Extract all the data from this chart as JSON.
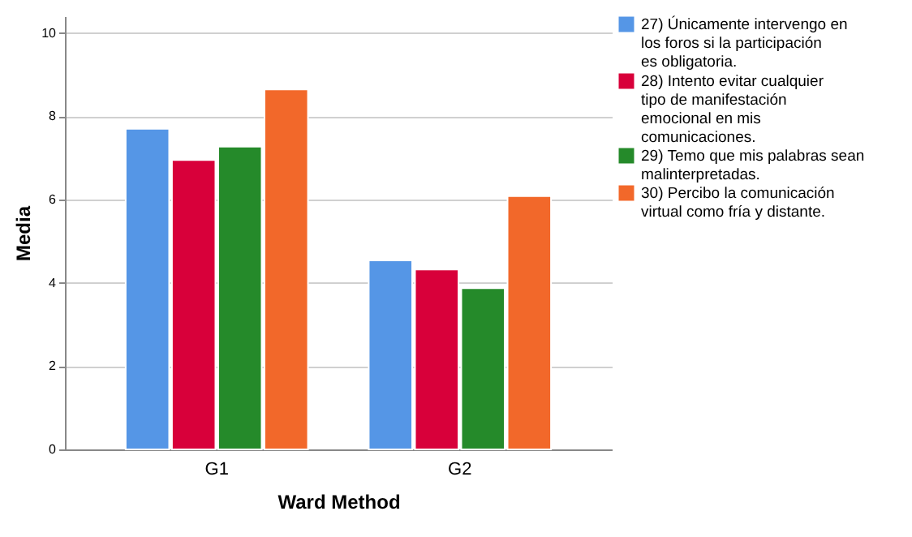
{
  "chart_data": {
    "type": "bar",
    "xlabel": "Ward Method",
    "ylabel": "Media",
    "categories": [
      "G1",
      "G2"
    ],
    "series": [
      {
        "name": "27) Únicamente intervengo en los foros si la participación es obligatoria.",
        "color": "#5596e6",
        "values": [
          7.7,
          4.54
        ]
      },
      {
        "name": "28) Intento evitar cualquier tipo de manifestación emocional en mis comunicaciones.",
        "color": "#d8003a",
        "values": [
          6.95,
          4.32
        ]
      },
      {
        "name": "29) Temo que mis palabras sean malinterpretadas.",
        "color": "#258a2a",
        "values": [
          7.27,
          3.87
        ]
      },
      {
        "name": "30) Percibo la comunicación virtual como fría y distante.",
        "color": "#f2682a",
        "values": [
          8.64,
          6.08
        ]
      }
    ],
    "ylim": [
      0,
      10.4
    ],
    "yticks": [
      0,
      2,
      4,
      6,
      8,
      10
    ],
    "grid": "y",
    "legend": "top right"
  }
}
